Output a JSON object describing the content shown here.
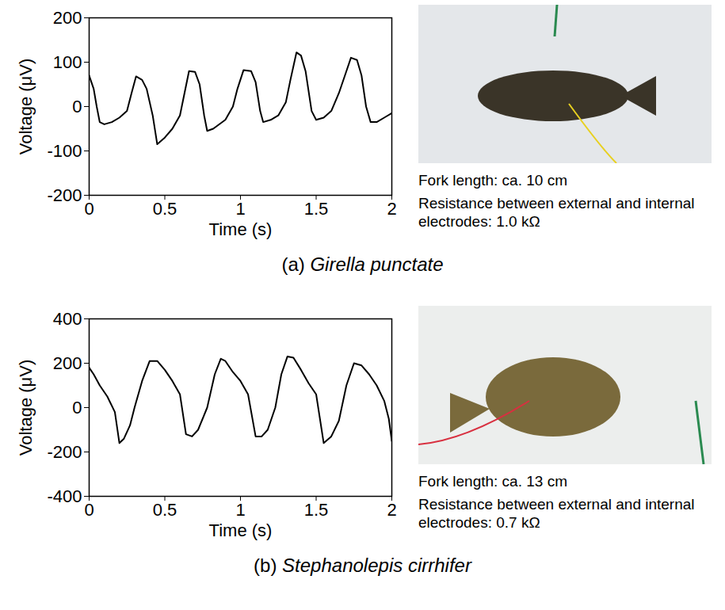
{
  "chart_data": [
    {
      "type": "line",
      "title": "(a) Girella punctate",
      "x_label": "Time (s)",
      "y_label": "Voltage (μV)",
      "annotations": [
        "Fork length: ca. 10 cm",
        "Resistance between external and internal electrodes: 1.0 kΩ"
      ],
      "color": "#000000",
      "xlim": [
        0,
        2
      ],
      "xticks": [
        0,
        0.5,
        1,
        1.5,
        2
      ],
      "ylim": [
        -200,
        200
      ],
      "yticks": [
        -200,
        -100,
        0,
        100,
        200
      ],
      "x": [
        0,
        0.03,
        0.05,
        0.07,
        0.1,
        0.15,
        0.2,
        0.25,
        0.28,
        0.31,
        0.35,
        0.38,
        0.42,
        0.45,
        0.5,
        0.55,
        0.6,
        0.63,
        0.66,
        0.7,
        0.73,
        0.76,
        0.78,
        0.82,
        0.9,
        0.95,
        0.98,
        1.02,
        1.07,
        1.1,
        1.13,
        1.15,
        1.2,
        1.25,
        1.3,
        1.33,
        1.37,
        1.4,
        1.43,
        1.47,
        1.5,
        1.55,
        1.6,
        1.65,
        1.7,
        1.73,
        1.77,
        1.8,
        1.83,
        1.86,
        1.9,
        1.95,
        2.0
      ],
      "values": [
        70,
        40,
        0,
        -35,
        -40,
        -35,
        -25,
        -10,
        30,
        68,
        60,
        40,
        -20,
        -85,
        -70,
        -50,
        -20,
        30,
        80,
        78,
        50,
        -20,
        -55,
        -50,
        -30,
        0,
        40,
        82,
        80,
        55,
        -10,
        -35,
        -30,
        -20,
        10,
        60,
        122,
        115,
        80,
        -10,
        -30,
        -25,
        -10,
        30,
        80,
        110,
        105,
        70,
        0,
        -35,
        -35,
        -25,
        -15
      ]
    },
    {
      "type": "line",
      "title": "(b) Stephanolepis cirrhifer",
      "x_label": "Time (s)",
      "y_label": "Voltage (μV)",
      "annotations": [
        "Fork length: ca. 13 cm",
        "Resistance between external and internal electrodes: 0.7 kΩ"
      ],
      "color": "#000000",
      "xlim": [
        0,
        2
      ],
      "xticks": [
        0,
        0.5,
        1,
        1.5,
        2
      ],
      "ylim": [
        -400,
        400
      ],
      "yticks": [
        -400,
        -200,
        0,
        200,
        400
      ],
      "x": [
        0,
        0.03,
        0.07,
        0.12,
        0.17,
        0.2,
        0.23,
        0.27,
        0.3,
        0.35,
        0.4,
        0.45,
        0.5,
        0.55,
        0.6,
        0.64,
        0.68,
        0.72,
        0.78,
        0.83,
        0.87,
        0.9,
        0.95,
        1.0,
        1.05,
        1.1,
        1.14,
        1.18,
        1.23,
        1.27,
        1.31,
        1.35,
        1.4,
        1.45,
        1.5,
        1.55,
        1.6,
        1.65,
        1.7,
        1.75,
        1.8,
        1.85,
        1.9,
        1.95,
        1.98,
        2.0
      ],
      "values": [
        180,
        150,
        100,
        50,
        -20,
        -160,
        -140,
        -80,
        0,
        120,
        210,
        210,
        170,
        120,
        60,
        -120,
        -130,
        -100,
        0,
        150,
        220,
        210,
        160,
        120,
        60,
        -130,
        -130,
        -100,
        0,
        150,
        230,
        225,
        170,
        110,
        60,
        -160,
        -130,
        -60,
        100,
        200,
        190,
        150,
        100,
        30,
        -50,
        -150
      ]
    }
  ]
}
